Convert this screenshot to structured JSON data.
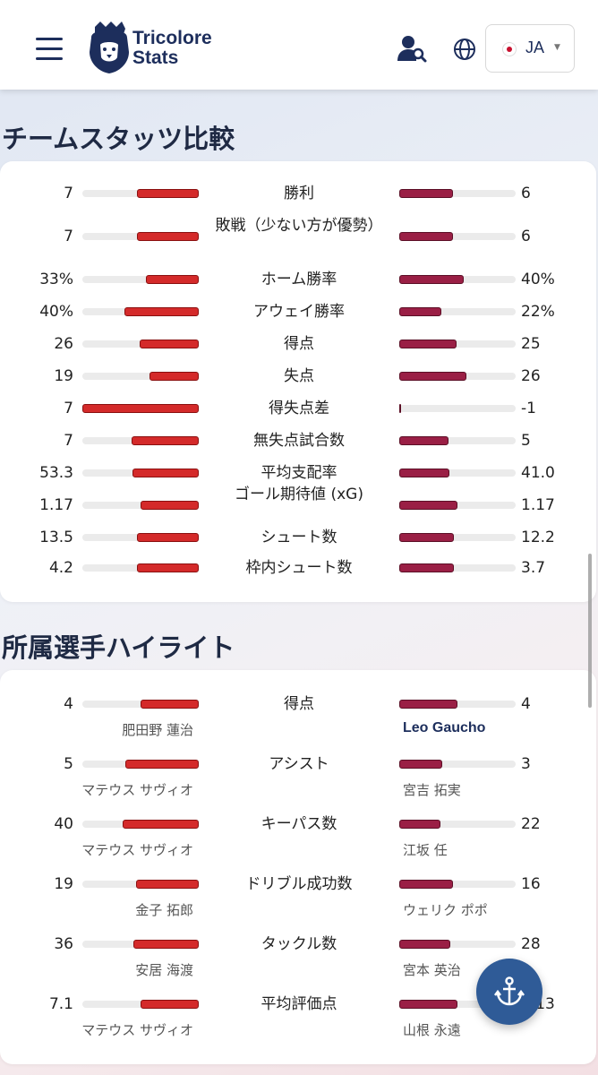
{
  "header": {
    "brand_line1": "Tricolore",
    "brand_line2": "Stats",
    "lang_code": "JA",
    "icons": [
      "menu-icon",
      "player-search-icon",
      "globe-icon",
      "japan-flag-icon",
      "caret-down-icon"
    ]
  },
  "colors": {
    "navy": "#1d2e5c",
    "left_bar": "#d42a2a",
    "right_bar": "#9a1f45",
    "fab": "#2f5b97"
  },
  "team_stats": {
    "title": "チームスタッツ比較",
    "rows": [
      {
        "label": "勝利",
        "left": "7",
        "right": "6",
        "left_pct": 0.53,
        "right_pct": 0.46
      },
      {
        "label": "敗戦（少ない方が優勢）",
        "left": "7",
        "right": "6",
        "left_pct": 0.53,
        "right_pct": 0.46
      },
      {
        "label": "ホーム勝率",
        "left": "33%",
        "right": "40%",
        "left_pct": 0.45,
        "right_pct": 0.55
      },
      {
        "label": "アウェイ勝率",
        "left": "40%",
        "right": "22%",
        "left_pct": 0.64,
        "right_pct": 0.36
      },
      {
        "label": "得点",
        "left": "26",
        "right": "25",
        "left_pct": 0.51,
        "right_pct": 0.49
      },
      {
        "label": "失点",
        "left": "19",
        "right": "26",
        "left_pct": 0.42,
        "right_pct": 0.58
      },
      {
        "label": "得失点差",
        "left": "7",
        "right": "-1",
        "left_pct": 1.0,
        "right_pct": 0.0
      },
      {
        "label": "無失点試合数",
        "left": "7",
        "right": "5",
        "left_pct": 0.58,
        "right_pct": 0.42
      },
      {
        "label": "平均支配率",
        "left": "53.3",
        "right": "41.0",
        "left_pct": 0.57,
        "right_pct": 0.43
      },
      {
        "label": "ゴール期待値 (xG)",
        "left": "1.17",
        "right": "1.17",
        "left_pct": 0.5,
        "right_pct": 0.5
      },
      {
        "label": "シュート数",
        "left": "13.5",
        "right": "12.2",
        "left_pct": 0.53,
        "right_pct": 0.47
      },
      {
        "label": "枠内シュート数",
        "left": "4.2",
        "right": "3.7",
        "left_pct": 0.53,
        "right_pct": 0.47
      }
    ]
  },
  "player_highlights": {
    "title": "所属選手ハイライト",
    "rows": [
      {
        "label": "得点",
        "left": "4",
        "right": "4",
        "left_player": "肥田野 蓮治",
        "right_player": "Leo Gaucho",
        "left_pct": 0.5,
        "right_pct": 0.5
      },
      {
        "label": "アシスト",
        "left": "5",
        "right": "3",
        "left_player": "マテウス サヴィオ",
        "right_player": "宮吉 拓実",
        "left_pct": 0.63,
        "right_pct": 0.37
      },
      {
        "label": "キーパス数",
        "left": "40",
        "right": "22",
        "left_player": "マテウス サヴィオ",
        "right_player": "江坂 任",
        "left_pct": 0.65,
        "right_pct": 0.35
      },
      {
        "label": "ドリブル成功数",
        "left": "19",
        "right": "16",
        "left_player": "金子 拓郎",
        "right_player": "ウェリク ポポ",
        "left_pct": 0.54,
        "right_pct": 0.46
      },
      {
        "label": "タックル数",
        "left": "36",
        "right": "28",
        "left_player": "安居 海渡",
        "right_player": "宮本 英治",
        "left_pct": 0.56,
        "right_pct": 0.44
      },
      {
        "label": "平均評価点",
        "left": "7.1",
        "right": "7.13",
        "left_player": "マテウス サヴィオ",
        "right_player": "山根 永遠",
        "left_pct": 0.5,
        "right_pct": 0.5
      }
    ]
  }
}
